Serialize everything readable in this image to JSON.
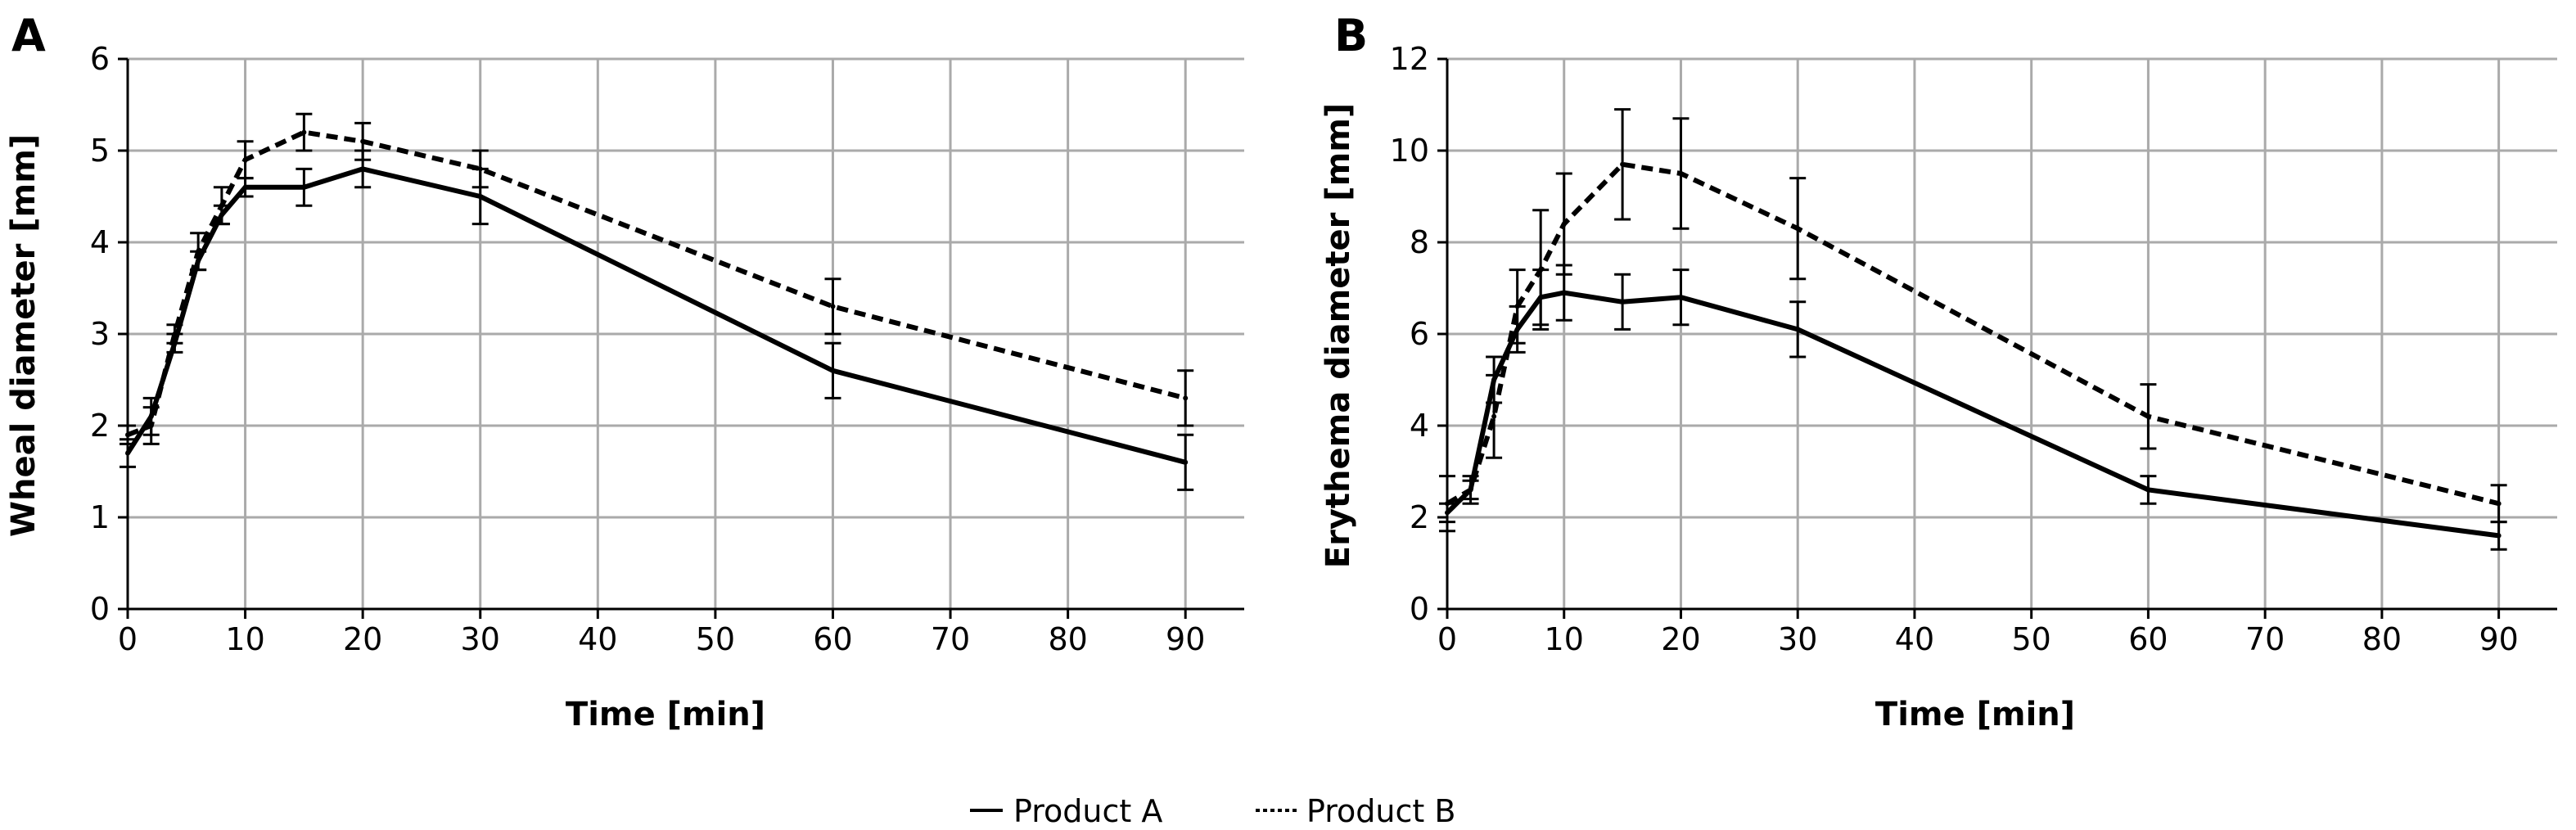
{
  "legend": {
    "items": [
      {
        "label": "Product A",
        "style": "solid"
      },
      {
        "label": "Product B",
        "style": "dashed"
      }
    ],
    "placement": "bottom-center"
  },
  "chart_data": [
    {
      "type": "line",
      "panel_label": "A",
      "xlabel": "Time [min]",
      "ylabel": "Wheal diameter [mm]",
      "xlim": [
        0,
        95
      ],
      "ylim": [
        0,
        6
      ],
      "xticks": [
        0,
        10,
        20,
        30,
        40,
        50,
        60,
        70,
        80,
        90
      ],
      "yticks": [
        0,
        1,
        2,
        3,
        4,
        5,
        6
      ],
      "grid": true,
      "x": [
        0,
        2,
        4,
        6,
        8,
        10,
        15,
        20,
        30,
        60,
        90
      ],
      "series": [
        {
          "name": "Product A",
          "style": "solid",
          "values": [
            1.7,
            2.1,
            2.9,
            3.8,
            4.3,
            4.6,
            4.6,
            4.8,
            4.5,
            2.6,
            1.6
          ],
          "errors": [
            0.15,
            0.2,
            0.1,
            0.1,
            0.1,
            0.1,
            0.2,
            0.2,
            0.3,
            0.3,
            0.3
          ]
        },
        {
          "name": "Product B",
          "style": "dashed",
          "values": [
            1.9,
            2.0,
            3.0,
            3.9,
            4.4,
            4.9,
            5.2,
            5.1,
            4.8,
            3.3,
            2.3
          ],
          "errors": [
            0.1,
            0.2,
            0.1,
            0.2,
            0.2,
            0.2,
            0.2,
            0.2,
            0.2,
            0.3,
            0.3
          ]
        }
      ]
    },
    {
      "type": "line",
      "panel_label": "B",
      "xlabel": "Time [min]",
      "ylabel": "Erythema diameter [mm]",
      "xlim": [
        0,
        95
      ],
      "ylim": [
        0,
        12
      ],
      "xticks": [
        0,
        10,
        20,
        30,
        40,
        50,
        60,
        70,
        80,
        90
      ],
      "yticks": [
        0,
        2,
        4,
        6,
        8,
        10,
        12
      ],
      "grid": true,
      "x": [
        0,
        2,
        4,
        6,
        8,
        10,
        15,
        20,
        30,
        60,
        90
      ],
      "series": [
        {
          "name": "Product A",
          "style": "solid",
          "values": [
            2.1,
            2.6,
            5.0,
            6.1,
            6.8,
            6.9,
            6.7,
            6.8,
            6.1,
            2.6,
            1.6
          ],
          "errors": [
            0.2,
            0.2,
            0.5,
            0.5,
            0.6,
            0.6,
            0.6,
            0.6,
            0.6,
            0.3,
            0.3
          ]
        },
        {
          "name": "Product B",
          "style": "dashed",
          "values": [
            2.3,
            2.6,
            4.2,
            6.6,
            7.4,
            8.4,
            9.7,
            9.5,
            8.3,
            4.2,
            2.3
          ],
          "errors": [
            0.6,
            0.3,
            0.9,
            0.8,
            1.3,
            1.1,
            1.2,
            1.2,
            1.1,
            0.7,
            0.4
          ]
        }
      ]
    }
  ]
}
